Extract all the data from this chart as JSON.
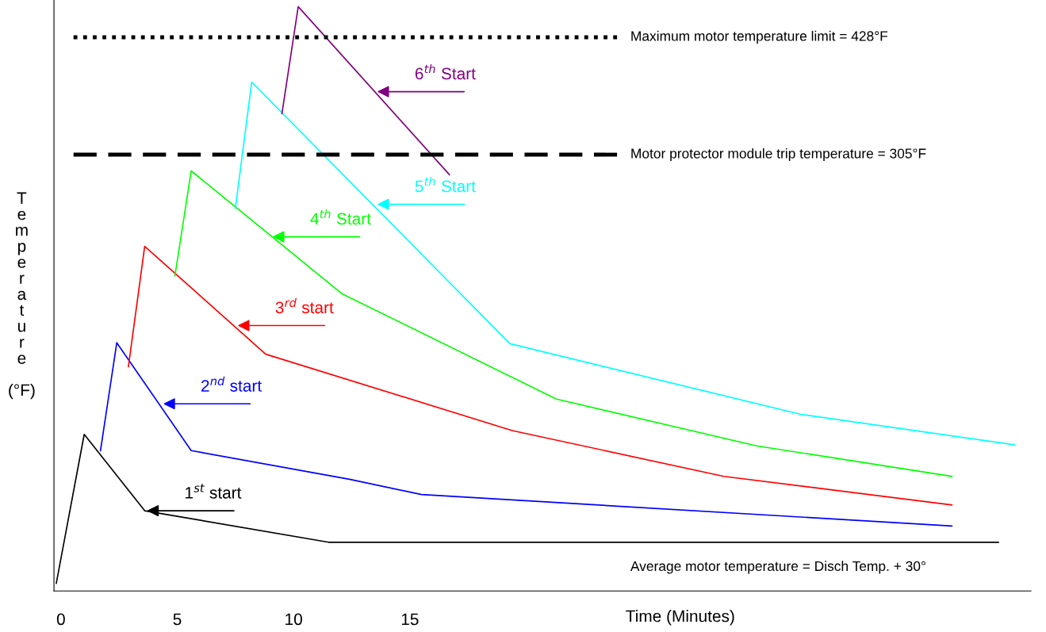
{
  "chart_data": {
    "type": "line",
    "xlabel": "Time (Minutes)",
    "ylabel": "Temperature (°F)",
    "xlim": [
      -0.3,
      41.7
    ],
    "ylim": [
      -152,
      467
    ],
    "xticks": [
      0,
      5,
      10,
      15
    ],
    "tick_labels": "x",
    "grid": false,
    "legend": false,
    "marker": "none",
    "line_style": "solid",
    "series": [
      {
        "color": "#000000",
        "x": [
          -0.2,
          1.0,
          3.6,
          11.5,
          40.3
        ],
        "values": [
          -144,
          12,
          -68,
          -101,
          -101
        ]
      },
      {
        "color": "#0000ff",
        "x": [
          1.7,
          2.4,
          5.6,
          12.4,
          15.5,
          38.3
        ],
        "values": [
          -5,
          108,
          -5,
          -35,
          -51,
          -84
        ]
      },
      {
        "color": "#ff0000",
        "x": [
          2.9,
          3.6,
          8.8,
          19.4,
          28.5,
          38.3
        ],
        "values": [
          83,
          209,
          96,
          16,
          -32,
          -62
        ]
      },
      {
        "color": "#00ff00",
        "x": [
          4.9,
          5.6,
          12.1,
          21.3,
          29.9,
          38.3
        ],
        "values": [
          178,
          288,
          159,
          49,
          0,
          -32
        ]
      },
      {
        "color": "#00ffff",
        "x": [
          7.5,
          8.2,
          19.3,
          31.8,
          41.0
        ],
        "values": [
          249,
          381,
          107,
          33,
          1
        ]
      },
      {
        "color": "#800080",
        "x": [
          9.5,
          10.2,
          16.7
        ],
        "values": [
          348,
          460,
          284
        ]
      }
    ],
    "ref_lines": [
      {
        "axis": "y",
        "value": 428,
        "label": "Maximum motor temperature limit = 428°F",
        "color": "#000000",
        "line_style": "dotted"
      },
      {
        "axis": "y",
        "value": 305,
        "label": "Motor protector module trip temperature = 305°F",
        "color": "#000000",
        "line_style": "dashed"
      }
    ],
    "annotations": [
      {
        "text": "1$^{st}$ start",
        "x": 3.6,
        "y": -68
      },
      {
        "text": "2$^{nd}$ start",
        "x": 4.3,
        "y": 44
      },
      {
        "text": "3$^{rd}$ start",
        "x": 7.5,
        "y": 126
      },
      {
        "text": "4$^{th}$ Start",
        "x": 9.0,
        "y": 219
      },
      {
        "text": "5$^{th}$ Start",
        "x": 13.5,
        "y": 253
      },
      {
        "text": "6$^{th}$ Start",
        "x": 13.5,
        "y": 371
      },
      "Average motor temperature = Disch Temp. + 30°"
    ]
  }
}
